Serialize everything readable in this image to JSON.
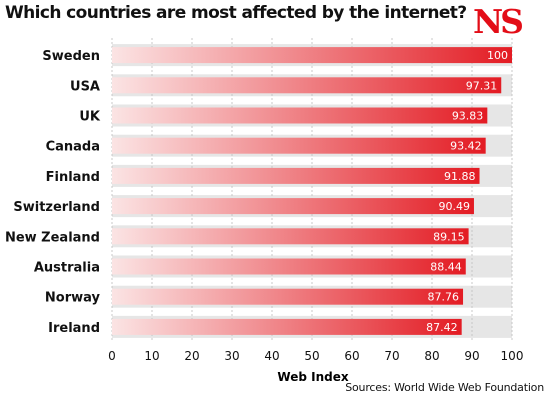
{
  "title": "Which countries are most affected by the internet?",
  "logo": "NS",
  "source": "Sources: World Wide Web Foundation",
  "colors": {
    "bar_light": "#fbe4e4",
    "bar_dark": "#e31b23",
    "band": "#e6e6e6",
    "logo": "#e30d17"
  },
  "chart_data": {
    "type": "bar",
    "orientation": "horizontal",
    "title": "Which countries are most affected by the internet?",
    "xlabel": "Web Index",
    "ylabel": "",
    "xlim": [
      0,
      100
    ],
    "xticks": [
      0,
      10,
      20,
      30,
      40,
      50,
      60,
      70,
      80,
      90,
      100
    ],
    "grid": true,
    "categories": [
      "Sweden",
      "USA",
      "UK",
      "Canada",
      "Finland",
      "Switzerland",
      "New Zealand",
      "Australia",
      "Norway",
      "Ireland"
    ],
    "values": [
      100,
      97.31,
      93.83,
      93.42,
      91.88,
      90.49,
      89.15,
      88.44,
      87.76,
      87.42
    ],
    "value_labels": [
      "100",
      "97.31",
      "93.83",
      "93.42",
      "91.88",
      "90.49",
      "89.15",
      "88.44",
      "87.76",
      "87.42"
    ]
  }
}
